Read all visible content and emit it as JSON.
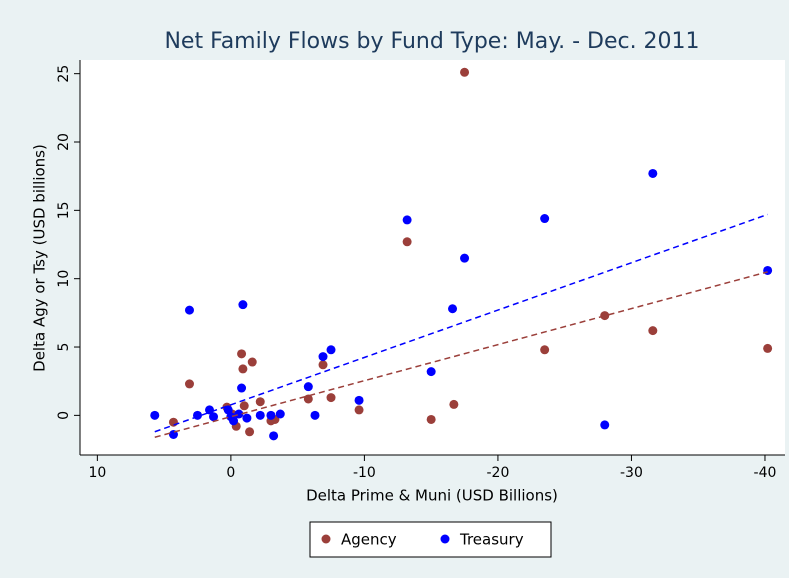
{
  "chart_data": {
    "type": "scatter",
    "title": "Net Family Flows by Fund Type: May. - Dec. 2011",
    "x_label": "Delta Prime & Muni (USD Billions)",
    "y_label": "Delta Agy or Tsy (USD billions)",
    "xlim": [
      11.3,
      -41.5
    ],
    "xticks": [
      10,
      0,
      -10,
      -20,
      -30,
      -40
    ],
    "ylim": [
      -2.9,
      26
    ],
    "yticks": [
      0,
      5,
      10,
      15,
      20,
      25
    ],
    "grid": false,
    "legend": "bottom",
    "series": [
      {
        "name": "Agency",
        "color": "#9b3f3a",
        "x": [
          -17.5,
          -13.2,
          -28.0,
          -31.6,
          -23.5,
          -40.2,
          -16.7,
          -15.0,
          -9.6,
          -7.5,
          -6.9,
          -5.8,
          -1.6,
          -0.8,
          -0.9,
          3.1,
          4.3,
          -1.0,
          -2.2,
          -1.4,
          -0.4,
          0.3,
          -3.0,
          -3.3,
          -0.1
        ],
        "y": [
          25.1,
          12.7,
          7.3,
          6.2,
          4.8,
          4.9,
          0.8,
          -0.3,
          0.4,
          1.3,
          3.7,
          1.2,
          3.9,
          4.5,
          3.4,
          2.3,
          -0.5,
          0.7,
          1.0,
          -1.2,
          -0.8,
          0.6,
          -0.4,
          -0.3,
          0.1
        ],
        "fit": {
          "x": [
            5.7,
            -40.2
          ],
          "y": [
            -1.6,
            10.5
          ]
        }
      },
      {
        "name": "Treasury",
        "color": "#0000ff",
        "x": [
          -31.6,
          -23.5,
          -13.2,
          -17.5,
          -40.2,
          -16.6,
          3.1,
          -0.9,
          -7.5,
          -6.9,
          -5.8,
          -15.0,
          -9.6,
          -28.0,
          -0.8,
          5.7,
          4.3,
          2.5,
          1.6,
          1.3,
          0.2,
          -0.2,
          -0.6,
          -1.2,
          -2.2,
          -3.0,
          -3.7,
          -3.2,
          -6.3,
          0.0
        ],
        "y": [
          17.7,
          14.4,
          14.3,
          11.5,
          10.6,
          7.8,
          7.7,
          8.1,
          4.8,
          4.3,
          2.1,
          3.2,
          1.1,
          -0.7,
          2.0,
          0.0,
          -1.4,
          0.0,
          0.4,
          -0.1,
          0.4,
          -0.4,
          0.1,
          -0.2,
          0.0,
          0.0,
          0.1,
          -1.5,
          0.0,
          -0.1
        ],
        "fit": {
          "x": [
            5.7,
            -40.2
          ],
          "y": [
            -1.2,
            14.7
          ]
        }
      }
    ]
  }
}
